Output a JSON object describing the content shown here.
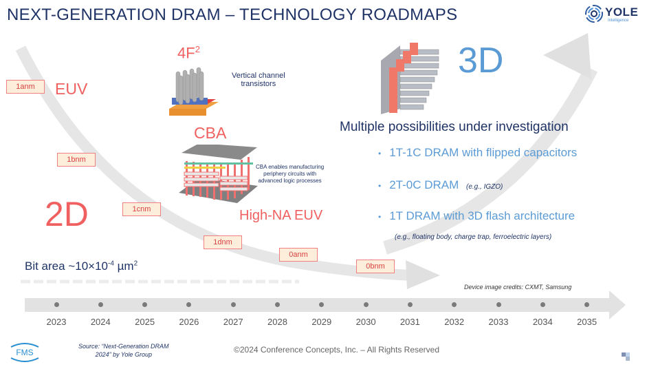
{
  "header": {
    "title": "NEXT-GENERATION DRAM – TECHNOLOGY ROADMAPS",
    "logo_name": "YOLE",
    "logo_sub": "Intelligence"
  },
  "roadmap_2d": {
    "label": "2D",
    "nodes": [
      "1anm",
      "1bnm",
      "1cnm",
      "1dnm",
      "0anm",
      "0bnm"
    ],
    "bit_area_prefix": "Bit area ~10×10",
    "bit_area_exp": "-4",
    "bit_area_unit": " µm",
    "bit_area_unit_exp": "2"
  },
  "technologies": {
    "euv": "EUV",
    "f2_base": "4F",
    "f2_exp": "2",
    "vct_line1": "Vertical channel",
    "vct_line2": "transistors",
    "cba": "CBA",
    "cba_desc_line1": "CBA enables manufacturing",
    "cba_desc_line2": "periphery circuits with",
    "cba_desc_line3": "advanced logic processes",
    "high_na_euv": "High-NA EUV"
  },
  "roadmap_3d": {
    "label": "3D",
    "heading": "Multiple possibilities under investigation",
    "bullets": [
      {
        "text": "1T-1C DRAM with flipped capacitors",
        "note": ""
      },
      {
        "text": "2T-0C DRAM",
        "note": "(e.g., IGZO)"
      },
      {
        "text": "1T DRAM with 3D flash architecture",
        "note": ""
      }
    ],
    "sub_note": "(e.g., floating body, charge trap, ferroelectric layers)"
  },
  "timeline": {
    "years": [
      "2023",
      "2024",
      "2025",
      "2026",
      "2027",
      "2028",
      "2029",
      "2030",
      "2031",
      "2032",
      "2033",
      "2034",
      "2035"
    ],
    "credits": "Device image credits: CXMT, Samsung"
  },
  "footer": {
    "fms_logo": "FMS",
    "source_line1": "Source: “Next-Generation DRAM",
    "source_line2": "2024” by Yole Group",
    "copyright": "©2024 Conference Concepts, Inc. – All Rights Reserved"
  },
  "colors": {
    "title": "#1f3366",
    "accent_red": "#f06060",
    "accent_blue": "#5b9bd5",
    "node_fill": "#fdeedc",
    "node_border": "#f08080",
    "arrow_gray": "#e2e2e2"
  }
}
